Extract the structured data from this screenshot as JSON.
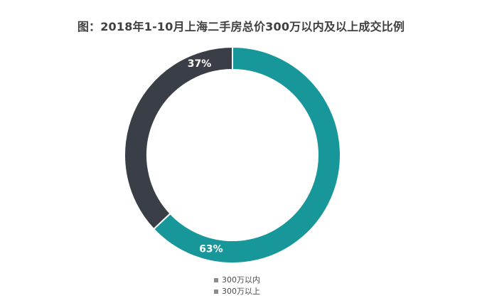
{
  "title": "图：2018年1-10月上海二手房总价300万以内及以上成交比例",
  "chart_data": {
    "type": "pie",
    "title": "图：2018年1-10月上海二手房总价300万以内及以上成交比例",
    "series": [
      {
        "name": "300万以内",
        "value": 63,
        "label": "63%",
        "color": "#17979a"
      },
      {
        "name": "300万以上",
        "value": 37,
        "label": "37%",
        "color": "#3a3f47"
      }
    ],
    "legend_position": "bottom",
    "donut": true
  },
  "legend": [
    {
      "label": "300万以内"
    },
    {
      "label": "300万以上"
    }
  ]
}
